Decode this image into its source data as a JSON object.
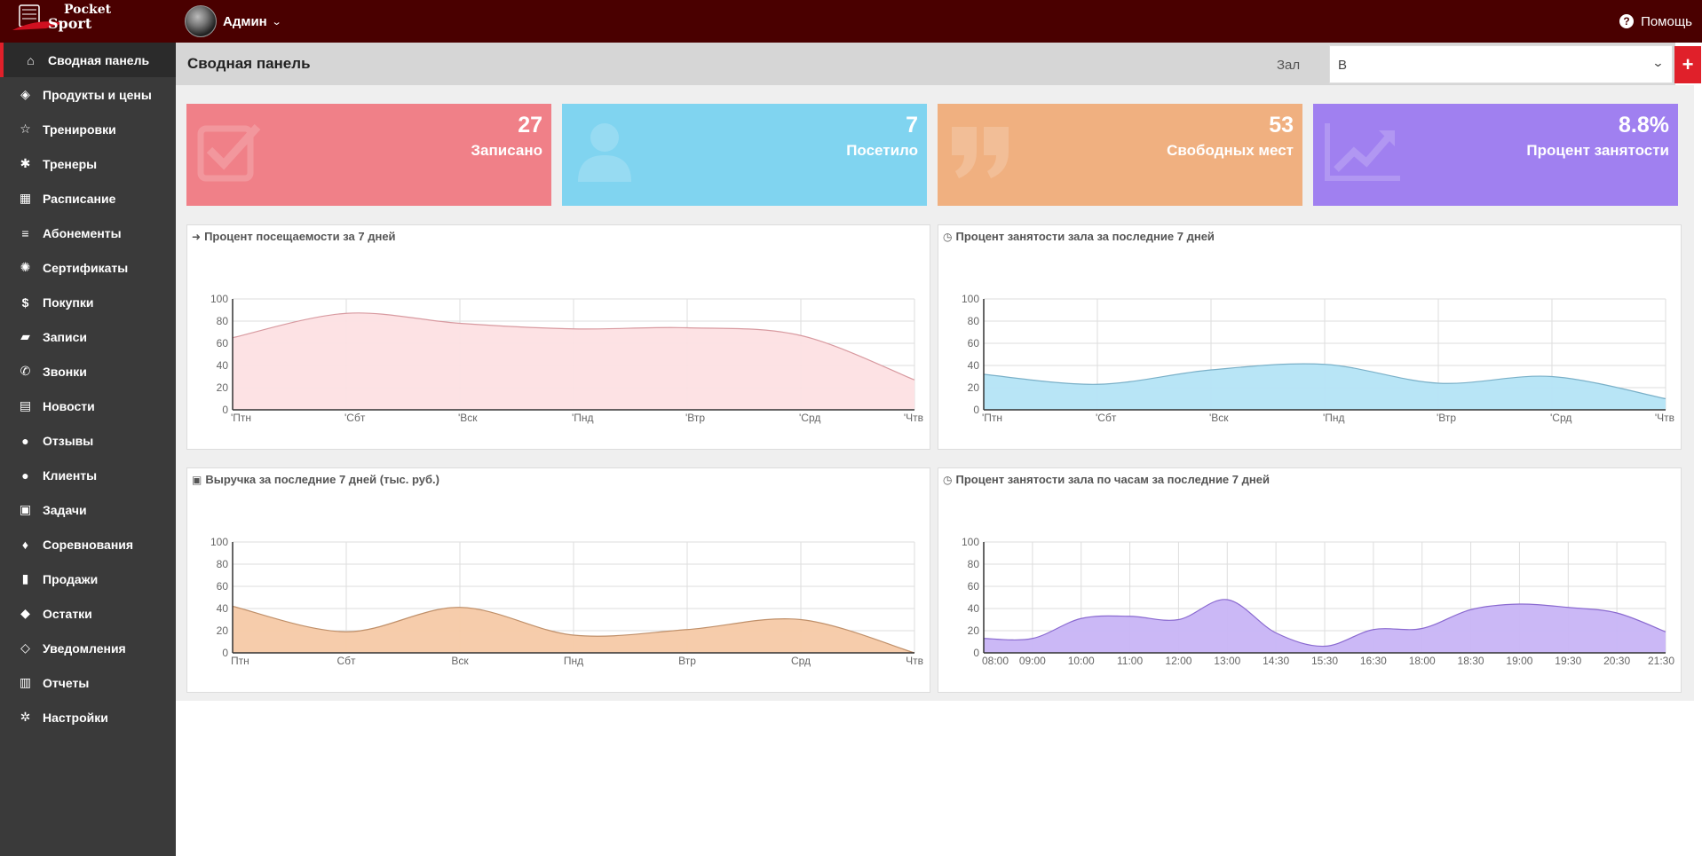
{
  "app": {
    "logo_text_top": "Pocket",
    "logo_text_bottom": "Sport"
  },
  "topbar": {
    "user_name": "Админ",
    "help_label": "Помощь"
  },
  "sidebar": {
    "items": [
      {
        "label": "Сводная панель",
        "icon": "home-icon"
      },
      {
        "label": "Продукты и цены",
        "icon": "cube-icon"
      },
      {
        "label": "Тренировки",
        "icon": "star-icon"
      },
      {
        "label": "Тренеры",
        "icon": "android-icon"
      },
      {
        "label": "Расписание",
        "icon": "calendar-icon"
      },
      {
        "label": "Абонементы",
        "icon": "database-icon"
      },
      {
        "label": "Сертификаты",
        "icon": "certificate-icon"
      },
      {
        "label": "Покупки",
        "icon": "dollar-icon"
      },
      {
        "label": "Записи",
        "icon": "book-icon"
      },
      {
        "label": "Звонки",
        "icon": "phone-icon"
      },
      {
        "label": "Новости",
        "icon": "newspaper-icon"
      },
      {
        "label": "Отзывы",
        "icon": "comment-icon"
      },
      {
        "label": "Клиенты",
        "icon": "user-icon"
      },
      {
        "label": "Задачи",
        "icon": "briefcase-icon"
      },
      {
        "label": "Соревнования",
        "icon": "bell-icon"
      },
      {
        "label": "Продажи",
        "icon": "bar-chart-icon"
      },
      {
        "label": "Остатки",
        "icon": "user-secret-icon"
      },
      {
        "label": "Уведомления",
        "icon": "bell-outline-icon"
      },
      {
        "label": "Отчеты",
        "icon": "list-alt-icon"
      },
      {
        "label": "Настройки",
        "icon": "cog-icon"
      }
    ]
  },
  "header": {
    "title": "Сводная панель",
    "hall_label": "Зал",
    "hall_value": "В",
    "add_label": "+"
  },
  "tiles": [
    {
      "value": "27",
      "label": "Записано",
      "color": "#f08088",
      "icon": "checkbox-icon"
    },
    {
      "value": "7",
      "label": "Посетило",
      "color": "#80d4f0",
      "icon": "user-icon"
    },
    {
      "value": "53",
      "label": "Свободных мест",
      "color": "#f0b080",
      "icon": "quote-icon"
    },
    {
      "value": "8.8%",
      "label": "Процент занятости",
      "color": "#a080f0",
      "icon": "line-chart-icon"
    }
  ],
  "chart_data": [
    {
      "type": "area",
      "title": "Процент посещаемости за 7 дней",
      "icon": "sign-in-icon",
      "x": [
        "Птн",
        "Сбт",
        "Вск",
        "Пнд",
        "Втр",
        "Срд",
        "Чтв"
      ],
      "values": [
        65,
        87,
        78,
        73,
        74,
        67,
        27
      ],
      "ylim": [
        0,
        100
      ],
      "yticks": [
        0,
        20,
        40,
        60,
        80,
        100
      ],
      "fill": "#fde0e3",
      "stroke": "#d89aa0",
      "tick_prefix": "'"
    },
    {
      "type": "area",
      "title": "Процент занятости зала за последние 7 дней",
      "icon": "clock-icon",
      "x": [
        "Птн",
        "Сбт",
        "Вск",
        "Пнд",
        "Втр",
        "Срд",
        "Чтв"
      ],
      "values": [
        32,
        23,
        36,
        41,
        24,
        30,
        10
      ],
      "ylim": [
        0,
        100
      ],
      "yticks": [
        0,
        20,
        40,
        60,
        80,
        100
      ],
      "fill": "#b4e4f5",
      "stroke": "#7ab0c8",
      "tick_prefix": "'"
    },
    {
      "type": "area",
      "title": "Выручка за последние 7 дней (тыс. руб.)",
      "icon": "money-icon",
      "x": [
        "Птн",
        "Сбт",
        "Вск",
        "Пнд",
        "Втр",
        "Срд",
        "Чтв"
      ],
      "values": [
        42,
        19,
        41,
        16,
        21,
        30,
        0
      ],
      "ylim": [
        0,
        100
      ],
      "yticks": [
        0,
        20,
        40,
        60,
        80,
        100
      ],
      "fill": "#f5c9a6",
      "stroke": "#c0906a",
      "tick_prefix": ""
    },
    {
      "type": "area",
      "title": "Процент занятости зала по часам за последние 7 дней",
      "icon": "clock-icon",
      "x": [
        "08:00",
        "09:00",
        "10:00",
        "11:00",
        "12:00",
        "13:00",
        "14:30",
        "15:30",
        "16:30",
        "18:00",
        "18:30",
        "19:00",
        "19:30",
        "20:30",
        "21:30"
      ],
      "values": [
        13,
        13,
        31,
        33,
        30,
        48,
        18,
        6,
        21,
        22,
        39,
        44,
        41,
        36,
        19
      ],
      "ylim": [
        0,
        100
      ],
      "yticks": [
        0,
        20,
        40,
        60,
        80,
        100
      ],
      "fill": "#c8b4f5",
      "stroke": "#8a6ad0",
      "tick_prefix": ""
    }
  ]
}
